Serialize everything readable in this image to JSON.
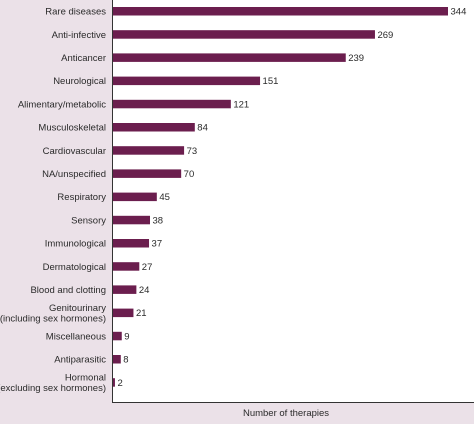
{
  "chart_data": {
    "type": "bar",
    "orientation": "horizontal",
    "categories": [
      "Rare diseases",
      "Anti-infective",
      "Anticancer",
      "Neurological",
      "Alimentary/metabolic",
      "Musculoskeletal",
      "Cardiovascular",
      "NA/unspecified",
      "Respiratory",
      "Sensory",
      "Immunological",
      "Dermatological",
      "Blood and clotting",
      "Genitourinary\n(including sex hormones)",
      "Miscellaneous",
      "Antiparasitic",
      "Hormonal\n(excluding sex hormones)"
    ],
    "values": [
      344,
      269,
      239,
      151,
      121,
      84,
      73,
      70,
      45,
      38,
      37,
      27,
      24,
      21,
      9,
      8,
      2
    ],
    "value_labels": [
      "344",
      "269",
      "239",
      "151",
      "121",
      "84",
      "73",
      "70",
      "45",
      "38",
      "37",
      "27",
      "24",
      "21",
      "9",
      "8",
      "2"
    ],
    "xlabel": "Number of therapies",
    "ylabel": "",
    "xlim": [
      0,
      344
    ],
    "grid": false,
    "colors": {
      "bar": "#6b1e4e",
      "background": "#ebe1e8",
      "plot_background": "#ffffff"
    }
  }
}
